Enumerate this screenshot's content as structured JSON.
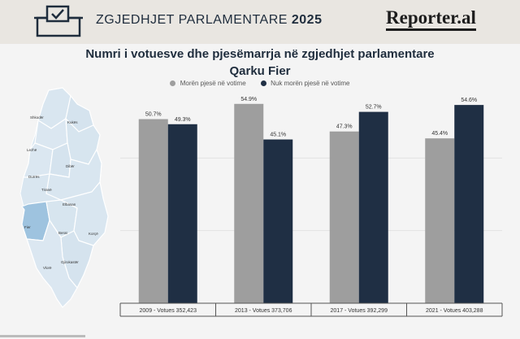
{
  "header": {
    "brand_title": "ZGJEDHJET PARLAMENTARE",
    "brand_year": "2025",
    "logo_text": "Reporter.al"
  },
  "map": {
    "labels": [
      "Shkodër",
      "Kukës",
      "Lezhë",
      "Dibër",
      "Durrës",
      "Tiranë",
      "Elbasan",
      "Fier",
      "Berat",
      "Korçë",
      "Gjirokastër",
      "Vlorë"
    ]
  },
  "colors": {
    "voted": "#9e9e9e",
    "not_voted": "#1f2f44",
    "map_fill": "#d9e6f0",
    "map_highlight": "#9ec3df"
  },
  "chart_data": {
    "type": "bar",
    "title": "Numri i votuesve dhe pjesëmarrja në zgjedhjet parlamentare",
    "subtitle": "Qarku Fier",
    "categories": [
      "2009 - Votues 352,423",
      "2013 - Votues 373,706",
      "2017 - Votues 392,299",
      "2021 - Votues 403,288"
    ],
    "series": [
      {
        "name": "Morën pjesë në votime",
        "values": [
          50.7,
          54.9,
          47.3,
          45.4
        ],
        "labels": [
          "50.7%",
          "54.9%",
          "47.3%",
          "45.4%"
        ],
        "color": "#9e9e9e"
      },
      {
        "name": "Nuk morën pjesë në votime",
        "values": [
          49.3,
          45.1,
          52.7,
          54.6
        ],
        "labels": [
          "49.3%",
          "45.1%",
          "52.7%",
          "54.6%"
        ],
        "color": "#1f2f44"
      }
    ],
    "ylim": [
      0,
      60
    ],
    "grid": true,
    "legend_position": "top"
  }
}
